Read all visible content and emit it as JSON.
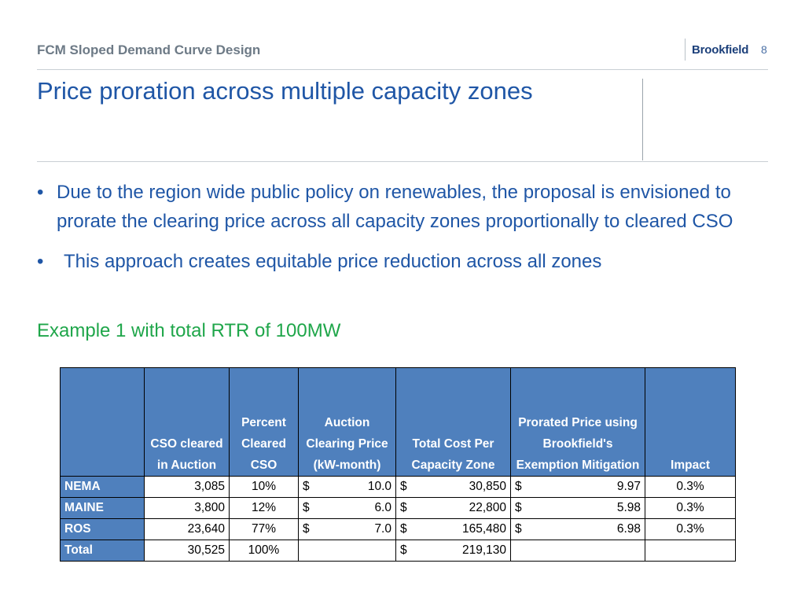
{
  "header": {
    "title": "FCM Sloped Demand Curve Design",
    "logo_text": "Brookfield",
    "page_number": "8"
  },
  "slide": {
    "title": "Price proration across multiple capacity zones",
    "bullets": [
      "Due to the region wide public policy on renewables, the proposal is envisioned to prorate the clearing price across all capacity zones proportionally to cleared CSO",
      "This approach creates equitable price reduction across all zones"
    ],
    "bullet_glyph": "•",
    "example_label": "Example 1 with total RTR of 100MW"
  },
  "colors": {
    "title_blue": "#1f56a6",
    "example_green": "#1fa64a",
    "table_header_blue": "#4f80bd"
  },
  "table": {
    "columns": [
      "",
      "CSO cleared in Auction",
      "Percent Cleared CSO",
      "Auction Clearing Price (kW-month)",
      "Total Cost Per Capacity Zone",
      "Prorated Price using Brookfield's Exemption Mitigation",
      "Impact"
    ],
    "rows": [
      {
        "zone": "NEMA",
        "cso": "3,085",
        "pct": "10%",
        "price_sym": "$",
        "price": "10.0",
        "cost_sym": "$",
        "cost": "30,850",
        "prorated_sym": "$",
        "prorated": "9.97",
        "impact": "0.3%"
      },
      {
        "zone": "MAINE",
        "cso": "3,800",
        "pct": "12%",
        "price_sym": "$",
        "price": "6.0",
        "cost_sym": "$",
        "cost": "22,800",
        "prorated_sym": "$",
        "prorated": "5.98",
        "impact": "0.3%"
      },
      {
        "zone": "ROS",
        "cso": "23,640",
        "pct": "77%",
        "price_sym": "$",
        "price": "7.0",
        "cost_sym": "$",
        "cost": "165,480",
        "prorated_sym": "$",
        "prorated": "6.98",
        "impact": "0.3%"
      },
      {
        "zone": "Total",
        "cso": "30,525",
        "pct": "100%",
        "price_sym": "",
        "price": "",
        "cost_sym": "$",
        "cost": "219,130",
        "prorated_sym": "",
        "prorated": "",
        "impact": ""
      }
    ]
  }
}
